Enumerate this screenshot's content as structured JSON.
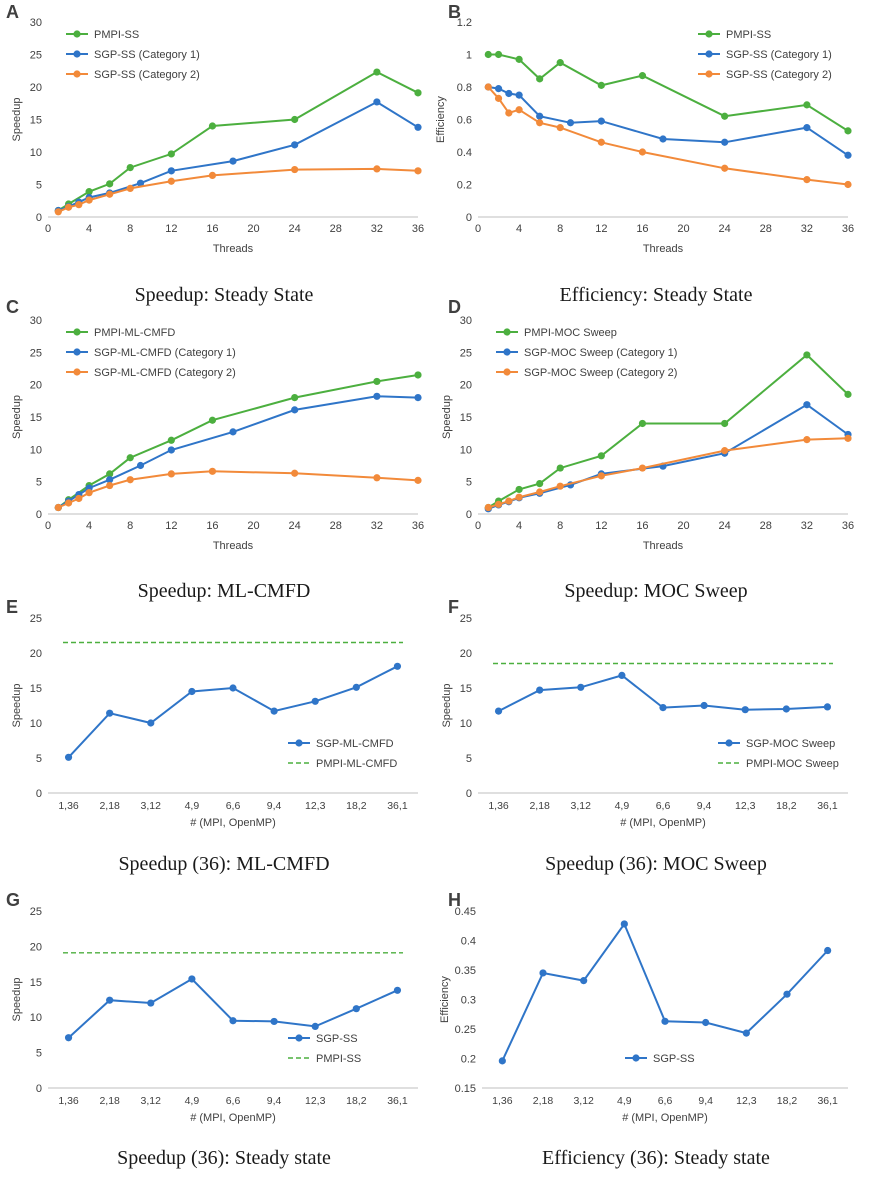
{
  "panels": [
    {
      "id": "panel-a",
      "letter": "A",
      "caption": "Speedup: Steady State",
      "chart_data": {
        "type": "line",
        "xtype": "numeric",
        "xlabel": "Threads",
        "ylabel": "Speedup",
        "xlim": [
          0,
          36
        ],
        "xticks": [
          0,
          4,
          8,
          12,
          16,
          20,
          24,
          28,
          32,
          36
        ],
        "ylim": [
          0,
          30
        ],
        "yticks": [
          0,
          5,
          10,
          15,
          20,
          25,
          30
        ],
        "ytick_format": "int",
        "legend": "top-left",
        "series": [
          {
            "name": "PMPI-SS",
            "color": "#4caf3f",
            "dashed": false,
            "markers": true,
            "x": [
              1,
              2,
              4,
              6,
              8,
              12,
              16,
              24,
              32,
              36
            ],
            "values": [
              1.0,
              2.0,
              3.9,
              5.1,
              7.6,
              9.7,
              14.0,
              15.0,
              22.3,
              19.1
            ]
          },
          {
            "name": "SGP-SS (Category 1)",
            "color": "#2f75c8",
            "dashed": false,
            "markers": true,
            "x": [
              1,
              2,
              3,
              4,
              6,
              9,
              12,
              18,
              24,
              32,
              36
            ],
            "values": [
              1.0,
              1.6,
              2.3,
              3.0,
              3.7,
              5.2,
              7.1,
              8.6,
              11.1,
              17.7,
              13.8
            ]
          },
          {
            "name": "SGP-SS (Category 2)",
            "color": "#f28a3a",
            "dashed": false,
            "markers": true,
            "x": [
              1,
              2,
              3,
              4,
              6,
              8,
              12,
              16,
              24,
              32,
              36
            ],
            "values": [
              0.8,
              1.5,
              1.9,
              2.6,
              3.5,
              4.4,
              5.5,
              6.4,
              7.3,
              7.4,
              7.1
            ]
          }
        ]
      }
    },
    {
      "id": "panel-b",
      "letter": "B",
      "caption": "Efficiency: Steady State",
      "chart_data": {
        "type": "line",
        "xtype": "numeric",
        "xlabel": "Threads",
        "ylabel": "Efficiency",
        "xlim": [
          0,
          36
        ],
        "xticks": [
          0,
          4,
          8,
          12,
          16,
          20,
          24,
          28,
          32,
          36
        ],
        "ylim": [
          0,
          1.2
        ],
        "yticks": [
          0,
          0.2,
          0.4,
          0.6,
          0.8,
          1,
          1.2
        ],
        "ytick_format": "auto",
        "legend": "top-right",
        "series": [
          {
            "name": "PMPI-SS",
            "color": "#4caf3f",
            "dashed": false,
            "markers": true,
            "x": [
              1,
              2,
              4,
              6,
              8,
              12,
              16,
              24,
              32,
              36
            ],
            "values": [
              1.0,
              1.0,
              0.97,
              0.85,
              0.95,
              0.81,
              0.87,
              0.62,
              0.69,
              0.53
            ]
          },
          {
            "name": "SGP-SS (Category 1)",
            "color": "#2f75c8",
            "dashed": false,
            "markers": true,
            "x": [
              1,
              2,
              3,
              4,
              6,
              9,
              12,
              18,
              24,
              32,
              36
            ],
            "values": [
              0.8,
              0.79,
              0.76,
              0.75,
              0.62,
              0.58,
              0.59,
              0.48,
              0.46,
              0.55,
              0.38
            ]
          },
          {
            "name": "SGP-SS (Category 2)",
            "color": "#f28a3a",
            "dashed": false,
            "markers": true,
            "x": [
              1,
              2,
              3,
              4,
              6,
              8,
              12,
              16,
              24,
              32,
              36
            ],
            "values": [
              0.8,
              0.73,
              0.64,
              0.66,
              0.58,
              0.55,
              0.46,
              0.4,
              0.3,
              0.23,
              0.2
            ]
          }
        ]
      }
    },
    {
      "id": "panel-c",
      "letter": "C",
      "caption": "Speedup: ML-CMFD",
      "chart_data": {
        "type": "line",
        "xtype": "numeric",
        "xlabel": "Threads",
        "ylabel": "Speedup",
        "xlim": [
          0,
          36
        ],
        "xticks": [
          0,
          4,
          8,
          12,
          16,
          20,
          24,
          28,
          32,
          36
        ],
        "ylim": [
          0,
          30
        ],
        "yticks": [
          0,
          5,
          10,
          15,
          20,
          25,
          30
        ],
        "ytick_format": "int",
        "legend": "top-left",
        "series": [
          {
            "name": "PMPI-ML-CMFD",
            "color": "#4caf3f",
            "dashed": false,
            "markers": true,
            "x": [
              1,
              2,
              4,
              6,
              8,
              12,
              16,
              24,
              32,
              36
            ],
            "values": [
              1.0,
              2.2,
              4.4,
              6.2,
              8.7,
              11.4,
              14.5,
              18.0,
              20.5,
              21.5
            ]
          },
          {
            "name": "SGP-ML-CMFD (Category 1)",
            "color": "#2f75c8",
            "dashed": false,
            "markers": true,
            "x": [
              1,
              2,
              3,
              4,
              6,
              9,
              12,
              18,
              24,
              32,
              36
            ],
            "values": [
              1.0,
              2.0,
              3.0,
              4.0,
              5.3,
              7.5,
              9.9,
              12.7,
              16.1,
              18.2,
              18.0
            ]
          },
          {
            "name": "SGP-ML-CMFD (Category 2)",
            "color": "#f28a3a",
            "dashed": false,
            "markers": true,
            "x": [
              1,
              2,
              3,
              4,
              6,
              8,
              12,
              16,
              24,
              32,
              36
            ],
            "values": [
              1.0,
              1.7,
              2.4,
              3.3,
              4.4,
              5.3,
              6.2,
              6.6,
              6.3,
              5.6,
              5.2
            ]
          }
        ]
      }
    },
    {
      "id": "panel-d",
      "letter": "D",
      "caption": "Speedup: MOC Sweep",
      "chart_data": {
        "type": "line",
        "xtype": "numeric",
        "xlabel": "Threads",
        "ylabel": "Speedup",
        "xlim": [
          0,
          36
        ],
        "xticks": [
          0,
          4,
          8,
          12,
          16,
          20,
          24,
          28,
          32,
          36
        ],
        "ylim": [
          0,
          30
        ],
        "yticks": [
          0,
          5,
          10,
          15,
          20,
          25,
          30
        ],
        "ytick_format": "int",
        "legend": "top-left",
        "series": [
          {
            "name": "PMPI-MOC Sweep",
            "color": "#4caf3f",
            "dashed": false,
            "markers": true,
            "x": [
              1,
              2,
              4,
              6,
              8,
              12,
              16,
              24,
              32,
              36
            ],
            "values": [
              1.0,
              2.0,
              3.8,
              4.7,
              7.1,
              9.0,
              14.0,
              14.0,
              24.6,
              18.5
            ]
          },
          {
            "name": "SGP-MOC Sweep (Category 1)",
            "color": "#2f75c8",
            "dashed": false,
            "markers": true,
            "x": [
              1,
              2,
              3,
              4,
              6,
              9,
              12,
              18,
              24,
              32,
              36
            ],
            "values": [
              0.8,
              1.4,
              1.9,
              2.5,
              3.2,
              4.5,
              6.2,
              7.4,
              9.4,
              16.9,
              12.3
            ]
          },
          {
            "name": "SGP-MOC Sweep (Category 2)",
            "color": "#f28a3a",
            "dashed": false,
            "markers": true,
            "x": [
              1,
              2,
              3,
              4,
              6,
              8,
              12,
              16,
              24,
              32,
              36
            ],
            "values": [
              1.0,
              1.5,
              2.0,
              2.6,
              3.4,
              4.3,
              5.9,
              7.1,
              9.8,
              11.5,
              11.7
            ]
          }
        ]
      }
    },
    {
      "id": "panel-e",
      "letter": "E",
      "caption": "Speedup (36): ML-CMFD",
      "chart_data": {
        "type": "line",
        "xtype": "category",
        "xlabel": "# (MPI, OpenMP)",
        "ylabel": "Speedup",
        "categories": [
          "1,36",
          "2,18",
          "3,12",
          "4,9",
          "6,6",
          "9,4",
          "12,3",
          "18,2",
          "36,1"
        ],
        "ylim": [
          0,
          25
        ],
        "yticks": [
          0,
          5,
          10,
          15,
          20,
          25
        ],
        "ytick_format": "int",
        "legend": "bottom-right",
        "series": [
          {
            "name": "SGP-ML-CMFD",
            "color": "#2f75c8",
            "dashed": false,
            "markers": true,
            "values": [
              5.1,
              11.4,
              10.0,
              14.5,
              15.0,
              11.7,
              13.1,
              15.1,
              18.1
            ]
          },
          {
            "name": "PMPI-ML-CMFD",
            "color": "#4caf3f",
            "dashed": true,
            "markers": false,
            "values": [
              21.5,
              21.5,
              21.5,
              21.5,
              21.5,
              21.5,
              21.5,
              21.5,
              21.5
            ]
          }
        ]
      }
    },
    {
      "id": "panel-f",
      "letter": "F",
      "caption": "Speedup (36): MOC Sweep",
      "chart_data": {
        "type": "line",
        "xtype": "category",
        "xlabel": "# (MPI, OpenMP)",
        "ylabel": "Speedup",
        "categories": [
          "1,36",
          "2,18",
          "3,12",
          "4,9",
          "6,6",
          "9,4",
          "12,3",
          "18,2",
          "36,1"
        ],
        "ylim": [
          0,
          25
        ],
        "yticks": [
          0,
          5,
          10,
          15,
          20,
          25
        ],
        "ytick_format": "int",
        "legend": "bottom-right",
        "series": [
          {
            "name": "SGP-MOC Sweep",
            "color": "#2f75c8",
            "dashed": false,
            "markers": true,
            "values": [
              11.7,
              14.7,
              15.1,
              16.8,
              12.2,
              12.5,
              11.9,
              12.0,
              12.3
            ]
          },
          {
            "name": "PMPI-MOC Sweep",
            "color": "#4caf3f",
            "dashed": true,
            "markers": false,
            "values": [
              18.5,
              18.5,
              18.5,
              18.5,
              18.5,
              18.5,
              18.5,
              18.5,
              18.5
            ]
          }
        ]
      }
    },
    {
      "id": "panel-g",
      "letter": "G",
      "caption": "Speedup (36): Steady state",
      "chart_data": {
        "type": "line",
        "xtype": "category",
        "xlabel": "# (MPI, OpenMP)",
        "ylabel": "Speedup",
        "categories": [
          "1,36",
          "2,18",
          "3,12",
          "4,9",
          "6,6",
          "9,4",
          "12,3",
          "18,2",
          "36,1"
        ],
        "ylim": [
          0,
          25
        ],
        "yticks": [
          0,
          5,
          10,
          15,
          20,
          25
        ],
        "ytick_format": "int",
        "legend": "bottom-right",
        "series": [
          {
            "name": "SGP-SS",
            "color": "#2f75c8",
            "dashed": false,
            "markers": true,
            "values": [
              7.1,
              12.4,
              12.0,
              15.4,
              9.5,
              9.4,
              8.7,
              11.2,
              13.8
            ]
          },
          {
            "name": "PMPI-SS",
            "color": "#4caf3f",
            "dashed": true,
            "markers": false,
            "values": [
              19.1,
              19.1,
              19.1,
              19.1,
              19.1,
              19.1,
              19.1,
              19.1,
              19.1
            ]
          }
        ]
      }
    },
    {
      "id": "panel-h",
      "letter": "H",
      "caption": "Efficiency (36): Steady state",
      "chart_data": {
        "type": "line",
        "xtype": "category",
        "xlabel": "# (MPI, OpenMP)",
        "ylabel": "Efficiency",
        "categories": [
          "1,36",
          "2,18",
          "3,12",
          "4,9",
          "6,6",
          "9,4",
          "12,3",
          "18,2",
          "36,1"
        ],
        "ylim": [
          0.15,
          0.45
        ],
        "yticks": [
          0.15,
          0.2,
          0.25,
          0.3,
          0.35,
          0.4,
          0.45
        ],
        "ytick_format": "auto",
        "legend": "bottom-center",
        "series": [
          {
            "name": "SGP-SS",
            "color": "#2f75c8",
            "dashed": false,
            "markers": true,
            "values": [
              0.196,
              0.345,
              0.332,
              0.428,
              0.263,
              0.261,
              0.243,
              0.309,
              0.383
            ]
          }
        ]
      }
    }
  ]
}
